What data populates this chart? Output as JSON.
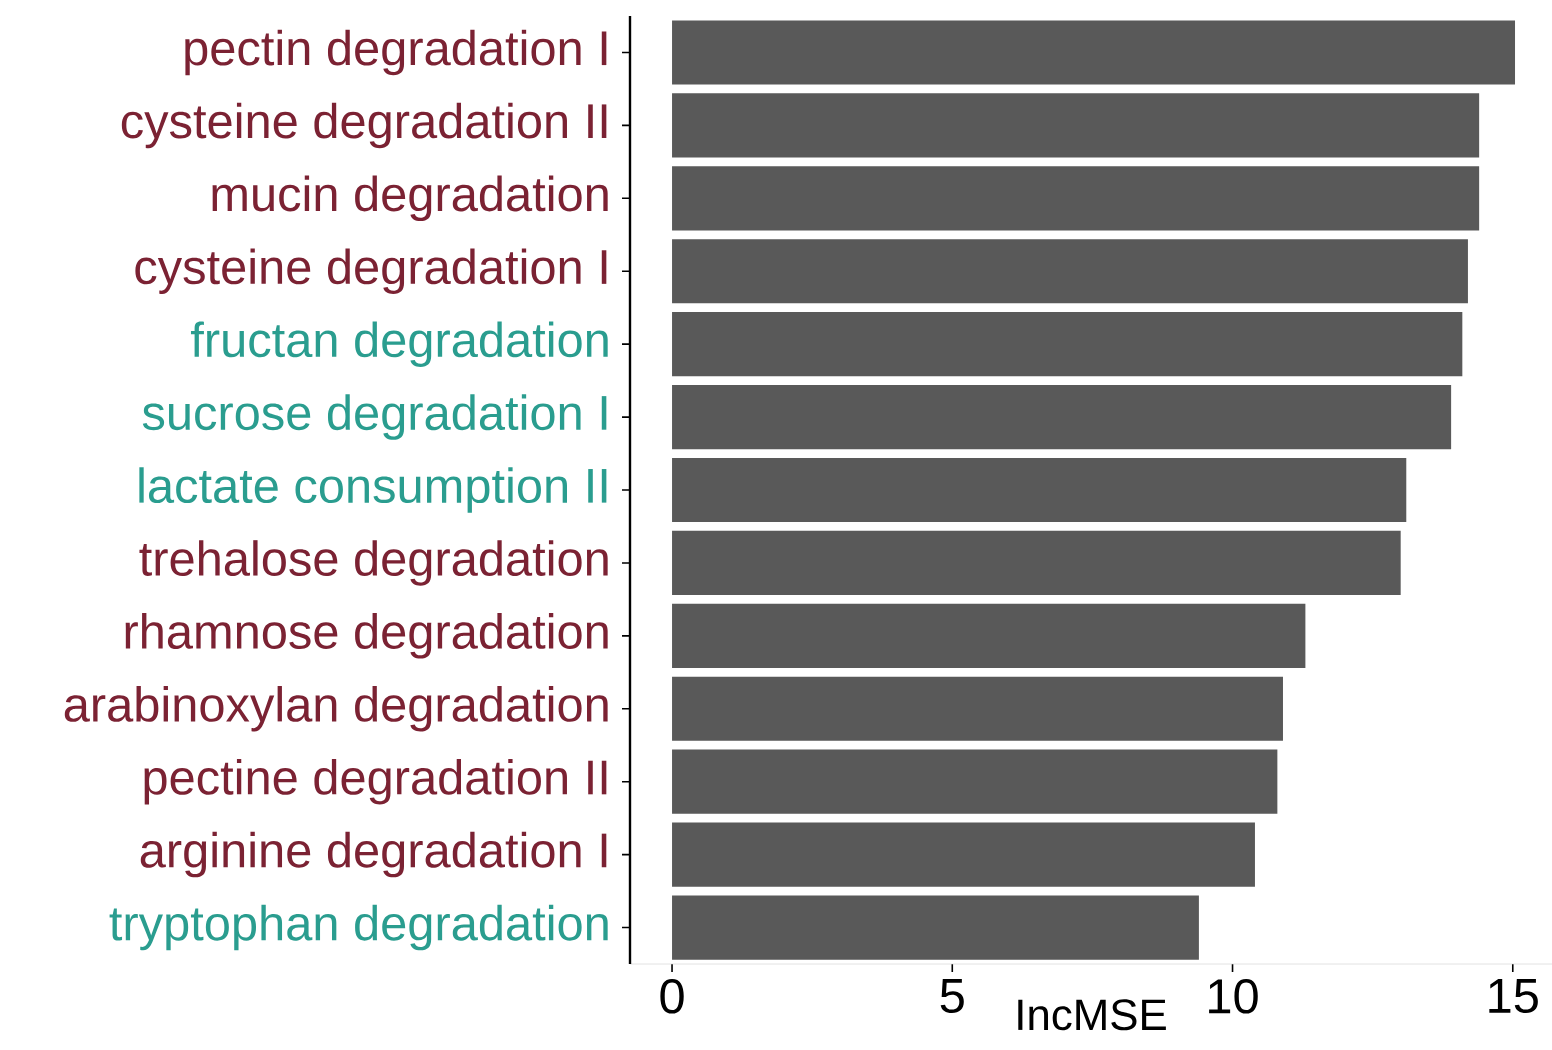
{
  "chart_data": {
    "type": "bar",
    "orientation": "horizontal",
    "xlabel": "IncMSE",
    "categories": [
      "pectin degradation I",
      "cysteine degradation II",
      "mucin degradation",
      "cysteine degradation I",
      "fructan degradation",
      "sucrose degradation I",
      "lactate consumption II",
      "trehalose degradation",
      "rhamnose degradation",
      "arabinoxylan degradation",
      "pectine degradation II",
      "arginine degradation I",
      "tryptophan degradation"
    ],
    "values": [
      15.04,
      14.4,
      14.4,
      14.2,
      14.1,
      13.9,
      13.1,
      13.0,
      11.3,
      10.9,
      10.8,
      10.4,
      9.4
    ],
    "color": "#595959",
    "xlim": [
      -0.75,
      15.7
    ],
    "xticks": [
      0,
      5,
      10,
      15
    ]
  }
}
